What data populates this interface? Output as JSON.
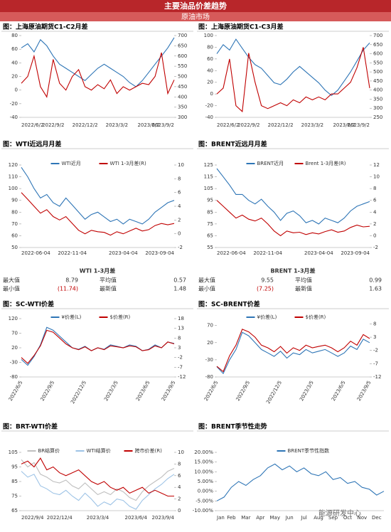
{
  "header": {
    "title": "主要油品价差趋势",
    "subtitle": "原油市场"
  },
  "watermark": "能源研发中心",
  "chart_data": [
    {
      "type": "line",
      "title": "图：上海原油期货C1-C2月差",
      "categories": [
        "2022/6/2",
        null,
        null,
        null,
        null,
        "2022/9/2",
        null,
        null,
        null,
        null,
        "2022/12/2",
        null,
        null,
        null,
        null,
        "2023/3/2",
        null,
        null,
        null,
        null,
        "2023/6/2",
        null,
        null,
        null,
        "2023/9/2"
      ],
      "ylim": [
        -40,
        80
      ],
      "yticks": [
        -40,
        -20,
        0,
        20,
        40,
        60,
        80
      ],
      "y2lim": [
        300,
        700
      ],
      "y2ticks": [
        300,
        350,
        400,
        450,
        500,
        550,
        600,
        650,
        700
      ],
      "series": [
        {
          "color": "#2e75b6",
          "axis": "y2",
          "values": [
            640,
            660,
            620,
            680,
            650,
            600,
            560,
            540,
            520,
            500,
            480,
            510,
            540,
            560,
            540,
            520,
            500,
            470,
            450,
            480,
            520,
            560,
            600,
            640,
            690
          ]
        },
        {
          "color": "#c00000",
          "values": [
            10,
            20,
            50,
            5,
            -10,
            45,
            10,
            0,
            20,
            30,
            5,
            0,
            8,
            2,
            15,
            -5,
            5,
            0,
            5,
            10,
            8,
            20,
            55,
            -5,
            15
          ]
        }
      ]
    },
    {
      "type": "line",
      "title": "图：上海原油期货C1-C3月差",
      "categories": [
        "2022/6/2",
        null,
        null,
        null,
        null,
        "2022/9/2",
        null,
        null,
        null,
        null,
        "2022/12/2",
        null,
        null,
        null,
        null,
        "2023/3/2",
        null,
        null,
        null,
        null,
        "2023/6/2",
        null,
        null,
        null,
        "2023/9/2"
      ],
      "ylim": [
        -40,
        100
      ],
      "yticks": [
        -40,
        -20,
        0,
        20,
        40,
        60,
        80,
        100
      ],
      "y2lim": [
        250,
        700
      ],
      "y2ticks": [
        250,
        300,
        350,
        400,
        450,
        500,
        550,
        600,
        650,
        700
      ],
      "series": [
        {
          "color": "#2e75b6",
          "axis": "y2",
          "values": [
            600,
            650,
            620,
            680,
            630,
            580,
            540,
            520,
            480,
            440,
            430,
            460,
            500,
            530,
            500,
            470,
            440,
            400,
            370,
            400,
            450,
            500,
            560,
            620,
            660
          ]
        },
        {
          "color": "#c00000",
          "values": [
            0,
            10,
            60,
            -20,
            -30,
            70,
            20,
            -20,
            -25,
            -20,
            -15,
            -20,
            -10,
            -15,
            -5,
            -10,
            -5,
            -10,
            0,
            0,
            10,
            20,
            45,
            80,
            10
          ]
        }
      ]
    },
    {
      "type": "line",
      "title": "图：WTI近远月月差",
      "categories": [
        "2022-06-04",
        null,
        null,
        null,
        null,
        null,
        null,
        null,
        "2022-11-04",
        null,
        null,
        null,
        null,
        null,
        null,
        null,
        "2023-04-04",
        null,
        null,
        null,
        null,
        null,
        null,
        null,
        "2023-09-04"
      ],
      "ylim": [
        50,
        120
      ],
      "yticks": [
        50,
        60,
        70,
        80,
        90,
        100,
        110,
        120
      ],
      "y2lim": [
        -2,
        10
      ],
      "y2ticks": [
        -2,
        0,
        2,
        4,
        6,
        8,
        10
      ],
      "series": [
        {
          "name": "WTI近月",
          "color": "#2e75b6",
          "values": [
            118,
            110,
            100,
            92,
            95,
            88,
            85,
            92,
            86,
            80,
            74,
            78,
            80,
            76,
            72,
            74,
            70,
            74,
            72,
            70,
            74,
            80,
            84,
            88,
            90
          ]
        },
        {
          "name": "WTI 1-3月差(R)",
          "color": "#c00000",
          "axis": "y2",
          "values": [
            6,
            5,
            4,
            3,
            3.5,
            2.5,
            2,
            2.5,
            1.5,
            0.5,
            0,
            0.5,
            0.3,
            0.2,
            -0.2,
            0.3,
            0,
            0.4,
            0.8,
            0.4,
            0.6,
            1.2,
            1.5,
            1.3,
            1.5
          ]
        }
      ]
    },
    {
      "type": "line",
      "title": "图：BRENT近远月月差",
      "categories": [
        "2022-06-04",
        null,
        null,
        null,
        null,
        null,
        null,
        null,
        "2022-11-04",
        null,
        null,
        null,
        null,
        null,
        null,
        null,
        "2023-04-04",
        null,
        null,
        null,
        null,
        null,
        null,
        null,
        "2023-09-04"
      ],
      "ylim": [
        55,
        125
      ],
      "yticks": [
        55,
        65,
        75,
        85,
        95,
        105,
        115,
        125
      ],
      "y2lim": [
        -2,
        12
      ],
      "y2ticks": [
        -2,
        0,
        2,
        4,
        6,
        8,
        10,
        12
      ],
      "series": [
        {
          "name": "BRENT近月",
          "color": "#2e75b6",
          "values": [
            122,
            115,
            108,
            100,
            100,
            95,
            92,
            96,
            90,
            85,
            78,
            84,
            86,
            82,
            76,
            78,
            75,
            80,
            78,
            76,
            80,
            86,
            90,
            92,
            94
          ]
        },
        {
          "name": "Brent 1-3月差(R)",
          "color": "#c00000",
          "axis": "y2",
          "values": [
            6,
            5,
            4,
            3,
            3.5,
            2.8,
            2.5,
            3,
            2,
            0.8,
            0,
            0.8,
            0.5,
            0.6,
            0.2,
            0.5,
            0.3,
            0.7,
            1,
            0.6,
            0.8,
            1.4,
            1.8,
            1.5,
            1.6
          ]
        }
      ]
    },
    {
      "type": "line",
      "title": "图：SC-WTI价差",
      "categories": [
        "2022/6/5",
        null,
        null,
        null,
        null,
        "2022/9/5",
        null,
        null,
        null,
        null,
        "2022/12/5",
        null,
        null,
        null,
        null,
        "2023/3/5",
        null,
        null,
        null,
        null,
        "2023/6/5",
        null,
        null,
        null,
        "2023/9/5"
      ],
      "ylim": [
        -80,
        120
      ],
      "yticks": [
        -80,
        -30,
        20,
        70,
        120
      ],
      "y2lim": [
        -12,
        18
      ],
      "y2ticks": [
        -12,
        -7,
        -2,
        3,
        8,
        13,
        18
      ],
      "series": [
        {
          "name": "¥价差(L)",
          "color": "#2e75b6",
          "values": [
            -20,
            -40,
            -10,
            30,
            90,
            80,
            60,
            40,
            20,
            15,
            25,
            10,
            20,
            15,
            30,
            25,
            20,
            30,
            25,
            10,
            15,
            30,
            20,
            40,
            35
          ]
        },
        {
          "name": "$价差(R)",
          "color": "#c00000",
          "axis": "y2",
          "values": [
            -2,
            -5,
            -1,
            4,
            12,
            11,
            8,
            5,
            3,
            2,
            3.5,
            1.5,
            3,
            2,
            4,
            3.5,
            3,
            4,
            3.5,
            1.5,
            2,
            4,
            3,
            6,
            5
          ]
        }
      ]
    },
    {
      "type": "line",
      "title": "图：SC-BRENT价差",
      "categories": [
        "2022/6/5",
        null,
        null,
        null,
        null,
        "2022/9/5",
        null,
        null,
        null,
        null,
        "2022/12/5",
        null,
        null,
        null,
        null,
        "2023/3/5",
        null,
        null,
        null,
        null,
        "2023/6/5",
        null,
        null,
        null,
        "2023/9/5"
      ],
      "ylim": [
        -80,
        90
      ],
      "yticks": [
        -80,
        -30,
        20,
        70
      ],
      "y2lim": [
        -12,
        10
      ],
      "y2ticks": [
        -12,
        -7,
        -2,
        3,
        8
      ],
      "series": [
        {
          "name": "¥价差(L)",
          "color": "#2e75b6",
          "values": [
            -50,
            -70,
            -30,
            0,
            50,
            40,
            20,
            0,
            -10,
            -20,
            -5,
            -25,
            -10,
            -15,
            0,
            -10,
            -5,
            0,
            -10,
            -20,
            -10,
            10,
            0,
            30,
            20
          ]
        },
        {
          "name": "$价差(R)",
          "color": "#c00000",
          "axis": "y2",
          "values": [
            -8,
            -10,
            -4,
            0,
            6,
            5,
            3,
            0,
            -1,
            -2.5,
            -0.5,
            -3,
            -1,
            -2,
            0,
            -1,
            -0.5,
            0,
            -1,
            -2.5,
            -1,
            1.5,
            0,
            4,
            2.5
          ]
        }
      ]
    },
    {
      "type": "line",
      "title": "图：BRT-WTI价差",
      "categories": [
        "2022/9/4",
        null,
        null,
        null,
        null,
        null,
        "2022/12/4",
        null,
        null,
        null,
        null,
        null,
        "2023/3/4",
        null,
        null,
        null,
        null,
        null,
        "2023/6/4",
        null,
        null,
        null,
        null,
        null,
        "2023/9/4"
      ],
      "ylim": [
        65,
        105
      ],
      "yticks": [
        65,
        75,
        85,
        95,
        105
      ],
      "y2lim": [
        0,
        10
      ],
      "y2ticks": [
        0,
        2,
        4,
        6,
        8,
        10
      ],
      "series": [
        {
          "name": "BR结算价",
          "color": "#bfbfbf",
          "values": [
            100,
            95,
            98,
            90,
            88,
            85,
            84,
            86,
            82,
            80,
            84,
            80,
            76,
            78,
            76,
            80,
            78,
            74,
            72,
            78,
            82,
            85,
            88,
            92,
            94
          ]
        },
        {
          "name": "WTI结算价",
          "color": "#9dc3e6",
          "values": [
            92,
            88,
            90,
            82,
            80,
            77,
            76,
            79,
            75,
            72,
            77,
            73,
            68,
            71,
            69,
            73,
            72,
            68,
            66,
            72,
            76,
            80,
            83,
            87,
            90
          ]
        },
        {
          "name": "跨市价差(R)",
          "color": "#c00000",
          "axis": "y2",
          "values": [
            8,
            8.5,
            7.5,
            9,
            7,
            7.5,
            6.5,
            6,
            6.5,
            7,
            6,
            5,
            4.5,
            5,
            4,
            3.5,
            4,
            3,
            3.5,
            4,
            3,
            3.5,
            3,
            2.5,
            2.5
          ]
        }
      ]
    },
    {
      "type": "line",
      "title": "图：BRENT季节性走势",
      "categories": [
        "Jan",
        null,
        "Feb",
        null,
        "Mar",
        null,
        "Apr",
        null,
        "May",
        null,
        "Jun",
        null,
        "Jul",
        null,
        "Aug",
        null,
        "Sep",
        null,
        "Oct",
        null,
        "Nov",
        null,
        "Dec",
        null
      ],
      "ylim": [
        -10,
        20
      ],
      "yticks": [
        {
          "value": -10,
          "label": "-10.00%"
        },
        {
          "value": -5,
          "label": "-5.00%"
        },
        {
          "value": 0,
          "label": "0.00%"
        },
        {
          "value": 5,
          "label": "5.00%"
        },
        {
          "value": 10,
          "label": "10.00%"
        },
        {
          "value": 15,
          "label": "15.00%"
        },
        {
          "value": 20,
          "label": "20.00%"
        }
      ],
      "series": [
        {
          "name": "BRENT季节性指数",
          "color": "#2e75b6",
          "values": [
            -5,
            -3,
            2,
            5,
            3,
            6,
            8,
            12,
            14,
            11,
            13,
            10,
            12,
            9,
            8,
            10,
            6,
            7,
            4,
            5,
            2,
            1,
            -2,
            0
          ]
        }
      ]
    }
  ],
  "stats": [
    {
      "title": "WTI 1-3月差",
      "rows": [
        [
          "最大值",
          "8.79",
          "平均值",
          "0.57"
        ],
        [
          "最小值",
          "(11.74)",
          "最新值",
          "1.48"
        ]
      ]
    },
    {
      "title": "BRENT 1-3月差",
      "rows": [
        [
          "最大值",
          "9.55",
          "平均值",
          "0.99"
        ],
        [
          "最小值",
          "(7.25)",
          "最新值",
          "1.63"
        ]
      ]
    }
  ]
}
